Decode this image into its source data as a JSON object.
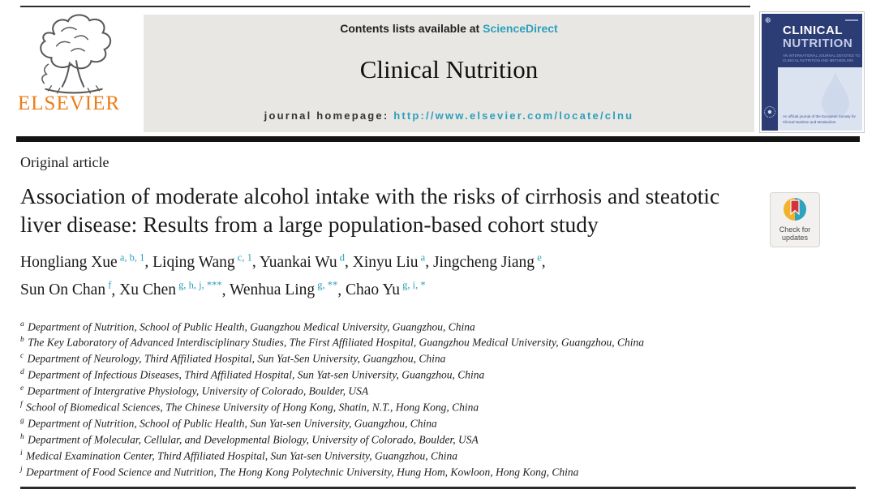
{
  "colors": {
    "teal_link": "#2e9fbc",
    "elsevier_orange": "#ee7c16",
    "cover_navy": "#2c3c74",
    "cover_light": "#dce3f0",
    "banner_gray": "#e8e7e4",
    "crossmark_red": "#d6323c",
    "crossmark_yellow": "#f2b32a",
    "crossmark_teal": "#2ea3bb"
  },
  "masthead": {
    "elsevier_wordmark": "ELSEVIER",
    "contents_prefix": "Contents lists available at ",
    "contents_link": "ScienceDirect",
    "journal_name": "Clinical Nutrition",
    "homepage_prefix": "journal homepage: ",
    "homepage_url": "http://www.elsevier.com/locate/clnu"
  },
  "cover": {
    "title_line1": "CLINICAL",
    "title_line2": "NUTRITION",
    "subtitle_line1": "AN INTERNATIONAL JOURNAL DEVOTED TO",
    "subtitle_line2": "CLINICAL NUTRITION AND METABOLISM",
    "footer_line1": "An official journal of the European Society for",
    "footer_line2": "Clinical Nutrition and Metabolism"
  },
  "crossmark": {
    "line1": "Check for",
    "line2": "updates"
  },
  "article": {
    "type_label": "Original article",
    "title": "Association of moderate alcohol intake with the risks of cirrhosis and steatotic liver disease: Results from a large population-based cohort study",
    "authors": [
      {
        "name": "Hongliang Xue",
        "sup": "a, b, 1"
      },
      {
        "name": "Liqing Wang",
        "sup": "c, 1"
      },
      {
        "name": "Yuankai Wu",
        "sup": "d"
      },
      {
        "name": "Xinyu Liu",
        "sup": "a"
      },
      {
        "name": "Jingcheng Jiang",
        "sup": "e",
        "break_after": true
      },
      {
        "name": "Sun On Chan",
        "sup": "f"
      },
      {
        "name": "Xu Chen",
        "sup": "g, h, j, ***"
      },
      {
        "name": "Wenhua Ling",
        "sup": "g, **"
      },
      {
        "name": "Chao Yu",
        "sup": "g, i, *"
      }
    ],
    "affiliations": [
      {
        "sup": "a",
        "text": "Department of Nutrition, School of Public Health, Guangzhou Medical University, Guangzhou, China"
      },
      {
        "sup": "b",
        "text": "The Key Laboratory of Advanced Interdisciplinary Studies, The First Affiliated Hospital, Guangzhou Medical University, Guangzhou, China"
      },
      {
        "sup": "c",
        "text": "Department of Neurology, Third Affiliated Hospital, Sun Yat-Sen University, Guangzhou, China"
      },
      {
        "sup": "d",
        "text": "Department of Infectious Diseases, Third Affiliated Hospital, Sun Yat-sen University, Guangzhou, China"
      },
      {
        "sup": "e",
        "text": "Department of Intergrative Physiology, University of Colorado, Boulder, USA"
      },
      {
        "sup": "f",
        "text": "School of Biomedical Sciences, The Chinese University of Hong Kong, Shatin, N.T., Hong Kong, China"
      },
      {
        "sup": "g",
        "text": "Department of Nutrition, School of Public Health, Sun Yat-sen University, Guangzhou, China"
      },
      {
        "sup": "h",
        "text": "Department of Molecular, Cellular, and Developmental Biology, University of Colorado, Boulder, USA"
      },
      {
        "sup": "i",
        "text": "Medical Examination Center, Third Affiliated Hospital, Sun Yat-sen University, Guangzhou, China"
      },
      {
        "sup": "j",
        "text": "Department of Food Science and Nutrition, The Hong Kong Polytechnic University, Hung Hom, Kowloon, Hong Kong, China"
      }
    ]
  }
}
